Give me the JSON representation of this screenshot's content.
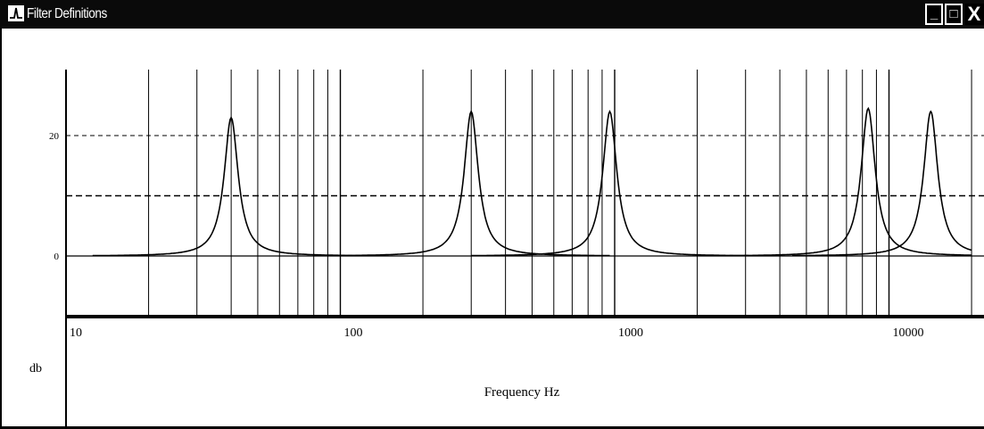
{
  "window": {
    "title": "Filter Definitions",
    "icon": "filter-response-icon",
    "minimize_label": "_",
    "maximize_label": "□",
    "close_label": "X",
    "background": "#ffffff",
    "titlebar_color": "#0a0a0a"
  },
  "chart_data": {
    "type": "line",
    "title": "",
    "xlabel": "Frequency Hz",
    "ylabel": "db",
    "x_scale": "log",
    "xlim": [
      10,
      20000
    ],
    "x_ticks": [
      10,
      100,
      1000,
      10000
    ],
    "x_tick_labels": [
      "10",
      "100",
      "1000",
      "10000"
    ],
    "ylim": [
      -10,
      28
    ],
    "y_ticks": [
      0,
      20
    ],
    "y_tick_labels": [
      "0",
      "20"
    ],
    "grid": true,
    "line_color": "#000000",
    "series": [
      {
        "center": 40,
        "peak": 23
      },
      {
        "center": 300,
        "peak": 24
      },
      {
        "center": 960,
        "peak": 24
      },
      {
        "center": 8400,
        "peak": 24.5
      },
      {
        "center": 14200,
        "peak": 24
      }
    ]
  }
}
